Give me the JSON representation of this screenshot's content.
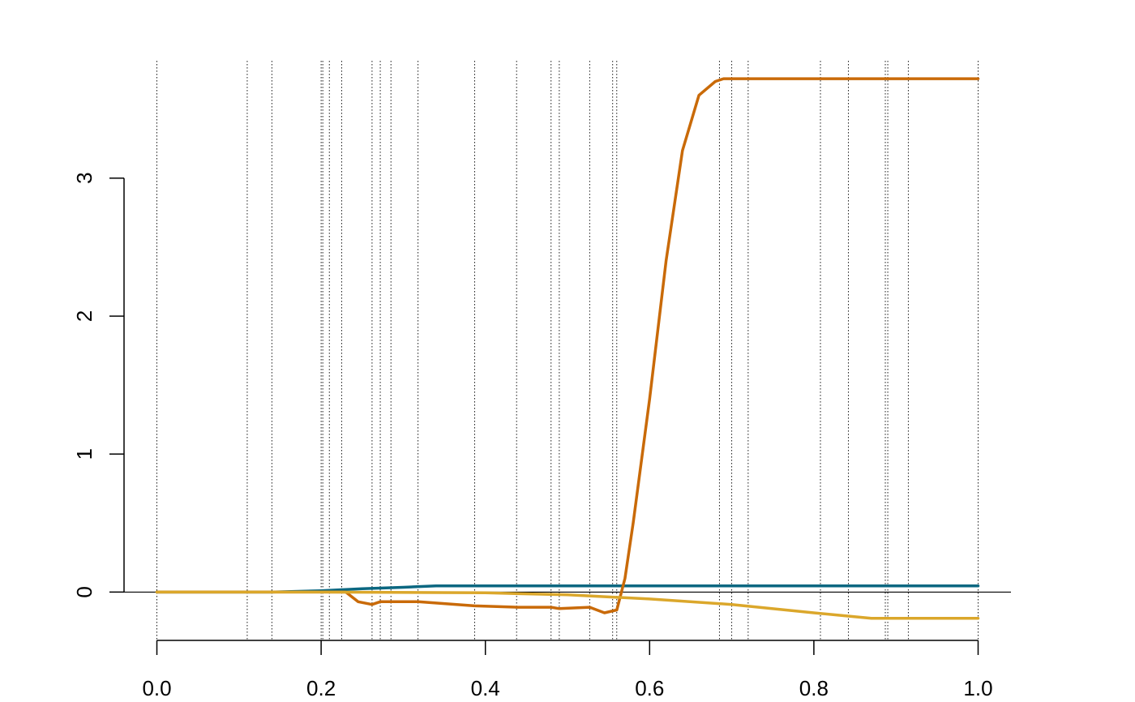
{
  "chart_data": {
    "type": "line",
    "title": "",
    "xlabel": "",
    "ylabel": "",
    "xlim": [
      -0.04,
      1.04
    ],
    "ylim": [
      -0.35,
      3.85
    ],
    "x_ticks": [
      0.0,
      0.2,
      0.4,
      0.6,
      0.8,
      1.0
    ],
    "x_tick_labels": [
      "0.0",
      "0.2",
      "0.4",
      "0.6",
      "0.8",
      "1.0"
    ],
    "y_ticks": [
      0,
      1,
      2,
      3
    ],
    "y_tick_labels": [
      "0",
      "1",
      "2",
      "3"
    ],
    "zero_line": true,
    "grid": false,
    "legend": "none",
    "vertical_reference_lines": [
      0.0,
      0.11,
      0.14,
      0.2,
      0.202,
      0.21,
      0.225,
      0.262,
      0.272,
      0.285,
      0.318,
      0.387,
      0.438,
      0.48,
      0.49,
      0.527,
      0.555,
      0.56,
      0.685,
      0.7,
      0.72,
      0.808,
      0.842,
      0.887,
      0.89,
      0.915,
      1.0
    ],
    "series": [
      {
        "color": "#0b6781",
        "x": [
          0.0,
          0.14,
          0.2,
          0.25,
          0.3,
          0.34,
          0.4,
          0.5,
          0.6,
          0.7,
          0.8,
          0.9,
          1.0
        ],
        "y": [
          0.0,
          0.0,
          0.01,
          0.025,
          0.035,
          0.045,
          0.045,
          0.045,
          0.045,
          0.045,
          0.045,
          0.045,
          0.045
        ]
      },
      {
        "color": "#c96a08",
        "x": [
          0.0,
          0.22,
          0.23,
          0.245,
          0.262,
          0.272,
          0.285,
          0.318,
          0.387,
          0.438,
          0.48,
          0.49,
          0.527,
          0.545,
          0.56,
          0.57,
          0.58,
          0.6,
          0.62,
          0.64,
          0.66,
          0.68,
          0.69,
          0.7,
          0.8,
          0.9,
          1.0
        ],
        "y": [
          0.0,
          0.0,
          0.0,
          -0.07,
          -0.09,
          -0.07,
          -0.07,
          -0.07,
          -0.1,
          -0.11,
          -0.11,
          -0.12,
          -0.11,
          -0.15,
          -0.13,
          0.1,
          0.5,
          1.4,
          2.4,
          3.2,
          3.6,
          3.7,
          3.72,
          3.72,
          3.72,
          3.72,
          3.72
        ]
      },
      {
        "color": "#dba72b",
        "x": [
          0.0,
          0.2,
          0.4,
          0.5,
          0.6,
          0.7,
          0.8,
          0.87,
          0.89,
          1.0
        ],
        "y": [
          0.0,
          0.0,
          -0.005,
          -0.02,
          -0.05,
          -0.09,
          -0.15,
          -0.19,
          -0.19,
          -0.19
        ]
      }
    ]
  }
}
